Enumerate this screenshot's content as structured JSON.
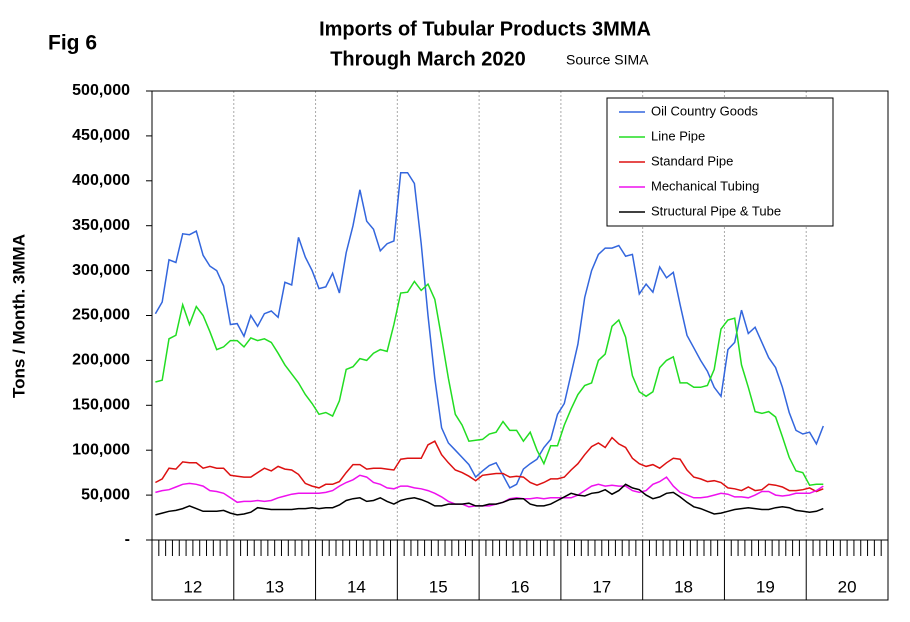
{
  "chart_data": {
    "type": "line",
    "fig_label": "Fig 6",
    "title": "Imports of Tubular Products 3MMA",
    "subtitle": "Through March 2020",
    "source": "Source SIMA",
    "y_label": "Tons / Month. 3MMA",
    "categories": [
      "12",
      null,
      null,
      null,
      null,
      null,
      null,
      null,
      null,
      null,
      null,
      null,
      "13",
      null,
      null,
      null,
      null,
      null,
      null,
      null,
      null,
      null,
      null,
      null,
      "14",
      null,
      null,
      null,
      null,
      null,
      null,
      null,
      null,
      null,
      null,
      null,
      "15",
      null,
      null,
      null,
      null,
      null,
      null,
      null,
      null,
      null,
      null,
      null,
      "16",
      null,
      null,
      null,
      null,
      null,
      null,
      null,
      null,
      null,
      null,
      null,
      "17",
      null,
      null,
      null,
      null,
      null,
      null,
      null,
      null,
      null,
      null,
      null,
      "18",
      null,
      null,
      null,
      null,
      null,
      null,
      null,
      null,
      null,
      null,
      null,
      "19",
      null,
      null,
      null,
      null,
      null,
      null,
      null,
      null,
      null,
      null,
      null,
      "20",
      null,
      null
    ],
    "ylim": [
      0,
      500000
    ],
    "yticks": [
      {
        "value": 0,
        "label": "-"
      },
      {
        "value": 50000,
        "label": "50,000"
      },
      {
        "value": 100000,
        "label": "100,000"
      },
      {
        "value": 150000,
        "label": "150,000"
      },
      {
        "value": 200000,
        "label": "200,000"
      },
      {
        "value": 250000,
        "label": "250,000"
      },
      {
        "value": 300000,
        "label": "300,000"
      },
      {
        "value": 350000,
        "label": "350,000"
      },
      {
        "value": 400000,
        "label": "400,000"
      },
      {
        "value": 450000,
        "label": "450,000"
      },
      {
        "value": 500000,
        "label": "500,000"
      }
    ],
    "grid": true,
    "legend": "upper right",
    "series": [
      {
        "name": "Oil Country Goods",
        "color": "#3366dd",
        "values": [
          252000,
          265000,
          312000,
          309000,
          341000,
          340000,
          344000,
          317000,
          305000,
          300000,
          283000,
          240000,
          241000,
          227000,
          250000,
          238000,
          252000,
          255000,
          248000,
          287000,
          284000,
          337000,
          315000,
          300000,
          280000,
          282000,
          297000,
          275000,
          320000,
          350000,
          390000,
          355000,
          346000,
          322000,
          330000,
          333000,
          409000,
          409000,
          397000,
          330000,
          250000,
          180000,
          125000,
          108000,
          100000,
          92000,
          84000,
          70000,
          77000,
          83000,
          86000,
          72000,
          58000,
          62000,
          79000,
          85000,
          90000,
          103000,
          112000,
          140000,
          152000,
          185000,
          218000,
          270000,
          300000,
          318000,
          325000,
          325000,
          328000,
          316000,
          318000,
          274000,
          285000,
          276000,
          304000,
          292000,
          298000,
          262000,
          228000,
          214000,
          200000,
          188000,
          170000,
          160000,
          212000,
          220000,
          256000,
          230000,
          237000,
          220000,
          203000,
          192000,
          170000,
          142000,
          122000,
          118000,
          120000,
          107000,
          127000
        ]
      },
      {
        "name": "Line Pipe",
        "color": "#22dd22",
        "values": [
          176000,
          178000,
          224000,
          228000,
          262000,
          240000,
          260000,
          250000,
          232000,
          212000,
          215000,
          222000,
          222000,
          215000,
          225000,
          222000,
          224000,
          220000,
          208000,
          195000,
          185000,
          175000,
          162000,
          152000,
          140000,
          142000,
          138000,
          155000,
          190000,
          193000,
          202000,
          200000,
          208000,
          212000,
          210000,
          240000,
          275000,
          276000,
          288000,
          278000,
          285000,
          268000,
          225000,
          180000,
          140000,
          128000,
          110000,
          111000,
          112000,
          118000,
          120000,
          132000,
          122000,
          122000,
          110000,
          120000,
          100000,
          85000,
          105000,
          105000,
          128000,
          146000,
          162000,
          172000,
          175000,
          200000,
          207000,
          238000,
          245000,
          226000,
          183000,
          165000,
          160000,
          165000,
          192000,
          200000,
          204000,
          175000,
          175000,
          170000,
          170000,
          172000,
          190000,
          235000,
          245000,
          247000,
          195000,
          170000,
          143000,
          141000,
          143000,
          137000,
          115000,
          92000,
          77000,
          75000,
          61000,
          62000,
          62000
        ]
      },
      {
        "name": "Standard Pipe",
        "color": "#dd1111",
        "values": [
          64000,
          68000,
          80000,
          79000,
          87000,
          86000,
          86000,
          80000,
          82000,
          80000,
          80000,
          72000,
          71000,
          70000,
          70000,
          75000,
          80000,
          77000,
          82000,
          79000,
          78000,
          73000,
          63000,
          60000,
          58000,
          62000,
          62000,
          65000,
          75000,
          84000,
          84000,
          79000,
          80000,
          80000,
          79000,
          78000,
          90000,
          91000,
          91000,
          91000,
          106000,
          110000,
          95000,
          86000,
          78000,
          75000,
          71000,
          66000,
          72000,
          73000,
          74000,
          74000,
          70000,
          71000,
          70000,
          64000,
          61000,
          64000,
          68000,
          68000,
          70000,
          78000,
          85000,
          95000,
          104000,
          108000,
          103000,
          114000,
          107000,
          103000,
          91000,
          85000,
          82000,
          84000,
          80000,
          86000,
          91000,
          90000,
          78000,
          70000,
          68000,
          65000,
          66000,
          64000,
          58000,
          57000,
          55000,
          59000,
          55000,
          56000,
          62000,
          61000,
          59000,
          55000,
          55000,
          56000,
          58000,
          54000,
          57000
        ]
      },
      {
        "name": "Mechanical Tubing",
        "color": "#ee11ee",
        "values": [
          53000,
          55000,
          56000,
          59000,
          62000,
          63000,
          62000,
          60000,
          55000,
          54000,
          52000,
          47000,
          42000,
          43000,
          43000,
          44000,
          43000,
          44000,
          47000,
          49000,
          51000,
          52000,
          52000,
          52000,
          52000,
          53000,
          55000,
          60000,
          64000,
          67000,
          72000,
          70000,
          64000,
          62000,
          58000,
          57000,
          60000,
          60000,
          58000,
          57000,
          55000,
          52000,
          48000,
          43000,
          40000,
          40000,
          37000,
          38000,
          38000,
          38000,
          40000,
          42000,
          46000,
          47000,
          46000,
          46000,
          47000,
          46000,
          47000,
          47000,
          47000,
          47000,
          50000,
          55000,
          60000,
          62000,
          60000,
          61000,
          60000,
          60000,
          55000,
          53000,
          55000,
          62000,
          65000,
          70000,
          60000,
          53000,
          50000,
          47000,
          47000,
          48000,
          50000,
          52000,
          51000,
          48000,
          48000,
          47000,
          50000,
          54000,
          54000,
          50000,
          49000,
          50000,
          52000,
          52000,
          52000,
          55000,
          60000
        ]
      },
      {
        "name": "Structural Pipe & Tube",
        "color": "#000000",
        "values": [
          28000,
          30000,
          32000,
          33000,
          35000,
          38000,
          35000,
          32000,
          32000,
          32000,
          33000,
          30000,
          28000,
          29000,
          31000,
          36000,
          35000,
          34000,
          34000,
          34000,
          34000,
          35000,
          35000,
          36000,
          35000,
          36000,
          36000,
          39000,
          44000,
          46000,
          47000,
          43000,
          44000,
          47000,
          43000,
          40000,
          44000,
          46000,
          47000,
          45000,
          42000,
          38000,
          38000,
          40000,
          40000,
          40000,
          41000,
          38000,
          38000,
          40000,
          40000,
          42000,
          45000,
          46000,
          46000,
          40000,
          38000,
          38000,
          40000,
          44000,
          48000,
          52000,
          50000,
          49000,
          52000,
          53000,
          56000,
          51000,
          55000,
          62000,
          58000,
          56000,
          50000,
          46000,
          48000,
          52000,
          53000,
          48000,
          42000,
          37000,
          35000,
          32000,
          29000,
          30000,
          32000,
          34000,
          35000,
          36000,
          35000,
          34000,
          34000,
          36000,
          37000,
          36000,
          33000,
          32000,
          31000,
          32000,
          35000
        ]
      }
    ]
  }
}
